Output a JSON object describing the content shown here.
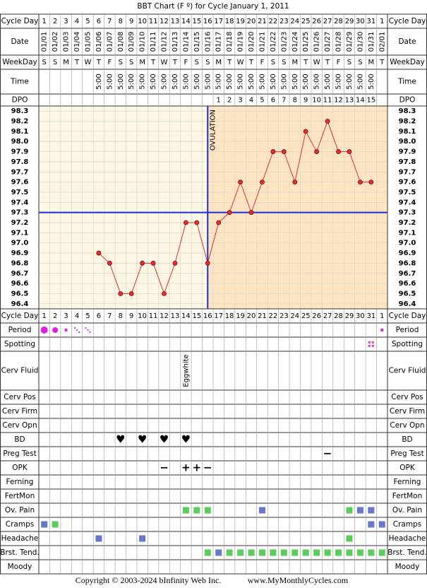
{
  "title": "BBT Chart (F º) for Cycle January 1, 2011",
  "header_labels": [
    "Cycle Day",
    "Date",
    "WeekDay",
    "Time",
    "DPO"
  ],
  "days": [
    1,
    2,
    3,
    4,
    5,
    6,
    7,
    8,
    9,
    10,
    11,
    12,
    13,
    14,
    15,
    16,
    17,
    18,
    19,
    20,
    21,
    22,
    23,
    24,
    25,
    26,
    27,
    28,
    29,
    30,
    31,
    1
  ],
  "dates": [
    "01/01",
    "01/02",
    "01/03",
    "01/04",
    "01/05",
    "01/06",
    "01/07",
    "01/08",
    "01/09",
    "01/10",
    "01/11",
    "01/12",
    "01/13",
    "01/14",
    "01/15",
    "01/16",
    "01/17",
    "01/18",
    "01/19",
    "01/20",
    "01/21",
    "01/22",
    "01/23",
    "01/24",
    "01/25",
    "01/26",
    "01/27",
    "01/28",
    "01/29",
    "01/30",
    "01/31",
    "02/01"
  ],
  "weekdays": [
    "S",
    "S",
    "M",
    "T",
    "W",
    "T",
    "F",
    "S",
    "S",
    "M",
    "T",
    "W",
    "T",
    "F",
    "S",
    "S",
    "M",
    "T",
    "W",
    "T",
    "F",
    "S",
    "S",
    "M",
    "T",
    "W",
    "T",
    "F",
    "S",
    "S",
    "M",
    "T"
  ],
  "times": [
    null,
    null,
    null,
    null,
    null,
    "5:00",
    "5:00",
    "5:00",
    "5:00",
    "5:00",
    "5:00",
    "5:00",
    "5:00",
    "5:00",
    "5:00",
    "5:00",
    "5:00",
    "5:00",
    "5:00",
    "5:00",
    "5:00",
    "5:00",
    "5:00",
    "5:00",
    "5:00",
    "5:00",
    "5:00",
    "5:00",
    "5:00",
    "5:00",
    "5:00",
    null
  ],
  "dpo": [
    null,
    null,
    null,
    null,
    null,
    null,
    null,
    null,
    null,
    null,
    null,
    null,
    null,
    null,
    null,
    null,
    1,
    2,
    3,
    4,
    5,
    6,
    7,
    8,
    9,
    10,
    11,
    12,
    13,
    14,
    15,
    null
  ],
  "chart_data": {
    "type": "line",
    "color": "#e03030",
    "values": [
      null,
      null,
      null,
      null,
      null,
      96.9,
      96.8,
      96.5,
      96.5,
      96.8,
      96.8,
      96.5,
      96.8,
      97.2,
      97.2,
      96.8,
      97.2,
      97.3,
      97.6,
      97.3,
      97.6,
      97.9,
      97.9,
      97.6,
      98.1,
      97.9,
      98.2,
      97.9,
      97.9,
      97.6,
      97.6,
      null
    ],
    "ylim": [
      96.35,
      98.35
    ],
    "yticks": [
      96.4,
      96.5,
      96.6,
      96.7,
      96.8,
      96.9,
      {
        "value": 97,
        "label": "97.0"
      },
      97.1,
      97.2,
      97.3,
      97.4,
      97.5,
      97.6,
      97.7,
      97.8,
      97.9,
      {
        "value": 98,
        "label": "98.0"
      },
      98.1,
      98.2,
      98.3
    ],
    "coverline": 97.3,
    "coverline_color": "#1a2fd0",
    "ovulation_date": "01/16",
    "ovulation_label": "OVULATION",
    "follicular_color": "#fcf6e4",
    "luteal_color": "#fde5c4"
  },
  "rows": [
    {
      "label": "Period",
      "marks": [
        {
          "date": "01/01"
        },
        {
          "date": "01/02"
        },
        {
          "date": "01/03"
        },
        {
          "date": "01/04"
        },
        {
          "date": "01/05"
        },
        {
          "date": "02/01"
        }
      ],
      "color": "#e020e0"
    },
    {
      "label": "Spotting",
      "marks": [
        {
          "date": "01/31"
        }
      ],
      "color": "#e050c0"
    },
    {
      "label": "Cerv Fluid",
      "marks": [
        {
          "date": "01/14",
          "text": "Eggwhite"
        }
      ]
    },
    {
      "label": "Cerv Pos",
      "marks": []
    },
    {
      "label": "Cerv Firm",
      "marks": []
    },
    {
      "label": "Cerv Opn",
      "marks": []
    },
    {
      "label": "BD",
      "marks": [
        {
          "date": "01/08",
          "text": "♥"
        },
        {
          "date": "01/10",
          "text": "♥"
        },
        {
          "date": "01/12",
          "text": "♥"
        },
        {
          "date": "01/14",
          "text": "♥"
        }
      ],
      "color": "#e0307a"
    },
    {
      "label": "Preg Test",
      "marks": [
        {
          "date": "01/27",
          "text": "−"
        }
      ],
      "color": "#7030a0"
    },
    {
      "label": "OPK",
      "marks": [
        {
          "date": "01/12",
          "text": "−"
        },
        {
          "date": "01/14",
          "text": "+"
        },
        {
          "date": "01/15",
          "text": "+"
        },
        {
          "date": "01/16",
          "text": "−"
        }
      ],
      "color": "#7030a0"
    },
    {
      "label": "Ferning",
      "marks": []
    },
    {
      "label": "FertMon",
      "marks": []
    },
    {
      "label": "Ov. Pain",
      "marks": [
        {
          "date": "01/14",
          "color": "#5ccc5c"
        },
        {
          "date": "01/15",
          "color": "#5ccc5c"
        },
        {
          "date": "01/16",
          "color": "#5ccc5c"
        },
        {
          "date": "01/21",
          "color": "#6677cc"
        },
        {
          "date": "01/29",
          "color": "#5ccc5c"
        },
        {
          "date": "01/30",
          "color": "#6677cc"
        },
        {
          "date": "01/31",
          "color": "#6677cc"
        }
      ]
    },
    {
      "label": "Cramps",
      "marks": [
        {
          "date": "01/01",
          "color": "#6677cc"
        },
        {
          "date": "01/02",
          "color": "#5ccc5c"
        },
        {
          "date": "01/31",
          "color": "#6677cc"
        },
        {
          "date": "02/01",
          "color": "#6677cc"
        }
      ]
    },
    {
      "label": "Headache",
      "marks": [
        {
          "date": "01/06",
          "color": "#6677cc"
        },
        {
          "date": "01/10",
          "color": "#6677cc"
        },
        {
          "date": "01/29",
          "color": "#5ccc5c"
        }
      ]
    },
    {
      "label": "Brst. Tend.",
      "marks": [
        {
          "date": "01/16",
          "color": "#5ccc5c"
        },
        {
          "date": "01/17",
          "color": "#6677cc"
        },
        {
          "date": "01/18",
          "color": "#5ccc5c"
        },
        {
          "date": "01/19",
          "color": "#5ccc5c"
        },
        {
          "date": "01/20",
          "color": "#5ccc5c"
        },
        {
          "date": "01/21",
          "color": "#5ccc5c"
        },
        {
          "date": "01/22",
          "color": "#5ccc5c"
        },
        {
          "date": "01/23",
          "color": "#5ccc5c"
        },
        {
          "date": "01/24",
          "color": "#5ccc5c"
        },
        {
          "date": "01/25",
          "color": "#5ccc5c"
        },
        {
          "date": "01/26",
          "color": "#5ccc5c"
        },
        {
          "date": "01/27",
          "color": "#5ccc5c"
        },
        {
          "date": "01/28",
          "color": "#5ccc5c"
        },
        {
          "date": "01/29",
          "color": "#5ccc5c"
        },
        {
          "date": "01/30",
          "color": "#5ccc5c"
        },
        {
          "date": "01/31",
          "color": "#5ccc5c"
        },
        {
          "date": "02/01",
          "color": "#5ccc5c"
        }
      ]
    },
    {
      "label": "Moody",
      "marks": []
    }
  ],
  "footer": {
    "copyright": "Copyright © 2003-2024 bInfinity Web Inc.",
    "site": "www.MyMonthlyCycles.com"
  }
}
